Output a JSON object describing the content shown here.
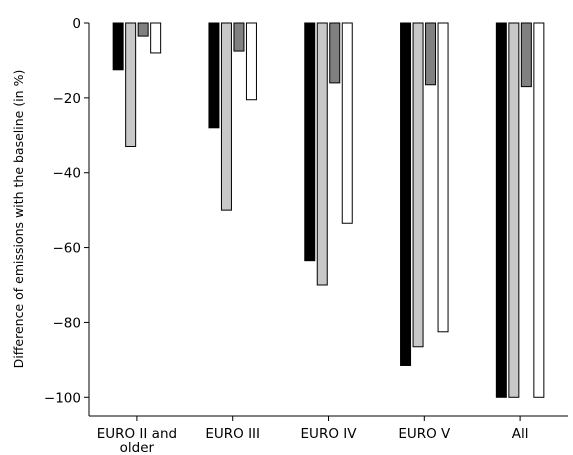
{
  "chart_data": {
    "type": "bar",
    "title": "",
    "xlabel": "",
    "ylabel": "Difference of emissions with the baseline (in %)",
    "categories": [
      "EURO II and\nolder",
      "EURO III",
      "EURO IV",
      "EURO V",
      "All"
    ],
    "series": [
      {
        "color": "#000000",
        "values": [
          -12.5,
          -28,
          -63.5,
          -91.5,
          -100
        ]
      },
      {
        "color": "#c8c8c8",
        "values": [
          -33,
          -50,
          -70,
          -86.5,
          -100
        ]
      },
      {
        "color": "#808080",
        "values": [
          -3.5,
          -7.5,
          -16,
          -16.5,
          -17
        ]
      },
      {
        "color": "#ffffff",
        "values": [
          -8,
          -20.5,
          -53.5,
          -82.5,
          -100
        ]
      }
    ],
    "yticks": [
      0,
      -20,
      -40,
      -60,
      -80,
      -100
    ],
    "ylim": [
      -105,
      0
    ],
    "grid": false,
    "legend": "none"
  }
}
